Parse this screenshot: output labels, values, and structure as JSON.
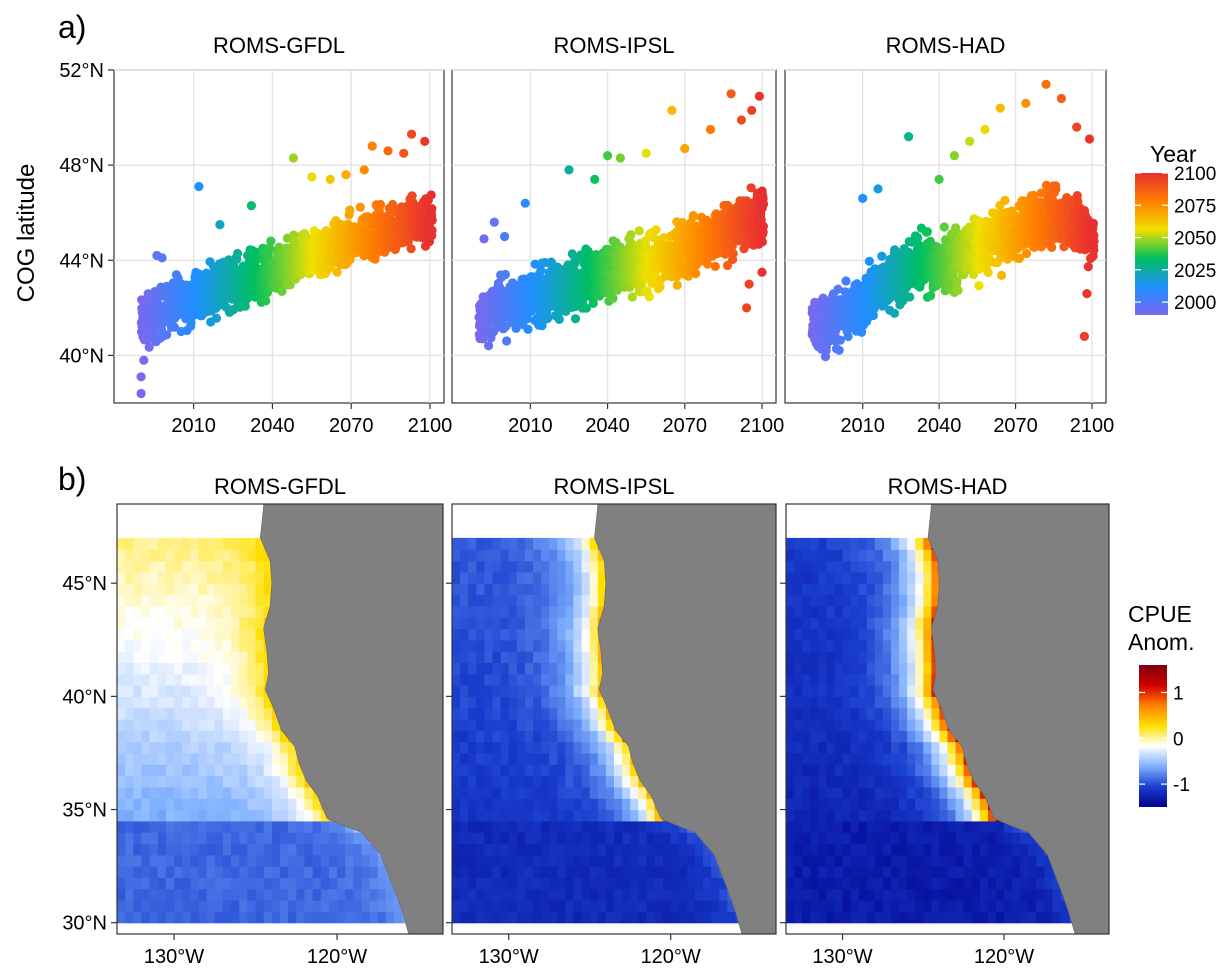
{
  "panels": {
    "a": "a)",
    "b": "b)"
  },
  "chart_data": [
    {
      "type": "scatter",
      "panel": "a",
      "facets": [
        "ROMS-GFDL",
        "ROMS-IPSL",
        "ROMS-HAD"
      ],
      "xlabel": "",
      "ylabel": "COG latitude",
      "xlim": [
        1985,
        2100
      ],
      "ylim": [
        38,
        52
      ],
      "x_ticks": [
        2010,
        2040,
        2070,
        2100
      ],
      "y_ticks": [
        40,
        44,
        48,
        52
      ],
      "y_tick_labels": [
        "40°N",
        "44°N",
        "48°N",
        "52°N"
      ],
      "grid": true,
      "legend": {
        "title": "Year",
        "position": "right",
        "ticks": [
          2000,
          2025,
          2050,
          2075,
          2100
        ],
        "range": [
          1990,
          2100
        ],
        "colors": [
          "#7b68ee",
          "#1e90ff",
          "#00c060",
          "#f0e000",
          "#ff8000",
          "#e83030"
        ]
      },
      "series": [
        {
          "facet": "ROMS-GFDL",
          "trend": [
            [
              1990,
              41.3
            ],
            [
              2000,
              42.0
            ],
            [
              2010,
              42.5
            ],
            [
              2020,
              42.9
            ],
            [
              2030,
              43.2
            ],
            [
              2040,
              43.5
            ],
            [
              2050,
              44.0
            ],
            [
              2060,
              44.4
            ],
            [
              2070,
              44.8
            ],
            [
              2080,
              45.2
            ],
            [
              2090,
              45.6
            ],
            [
              2100,
              45.6
            ]
          ],
          "spread": 0.9,
          "outliers": [
            [
              1990,
              38.4
            ],
            [
              1990,
              39.1
            ],
            [
              1991,
              39.8
            ],
            [
              1996,
              44.2
            ],
            [
              1998,
              44.1
            ],
            [
              2012,
              47.1
            ],
            [
              2020,
              45.5
            ],
            [
              2032,
              46.3
            ],
            [
              2048,
              48.3
            ],
            [
              2055,
              47.5
            ],
            [
              2062,
              47.4
            ],
            [
              2068,
              47.6
            ],
            [
              2075,
              47.8
            ],
            [
              2078,
              48.8
            ],
            [
              2084,
              48.6
            ],
            [
              2090,
              48.5
            ],
            [
              2093,
              49.3
            ],
            [
              2098,
              49.0
            ]
          ]
        },
        {
          "facet": "ROMS-IPSL",
          "trend": [
            [
              1990,
              41.6
            ],
            [
              2000,
              42.1
            ],
            [
              2010,
              42.4
            ],
            [
              2020,
              42.7
            ],
            [
              2030,
              43.2
            ],
            [
              2040,
              43.6
            ],
            [
              2050,
              43.7
            ],
            [
              2060,
              43.9
            ],
            [
              2070,
              44.5
            ],
            [
              2080,
              44.9
            ],
            [
              2090,
              45.5
            ],
            [
              2100,
              45.8
            ]
          ],
          "spread": 1.0,
          "outliers": [
            [
              1992,
              44.9
            ],
            [
              1996,
              45.6
            ],
            [
              2000,
              45.0
            ],
            [
              2008,
              46.4
            ],
            [
              2025,
              47.8
            ],
            [
              2035,
              47.4
            ],
            [
              2040,
              48.4
            ],
            [
              2045,
              48.3
            ],
            [
              2055,
              48.5
            ],
            [
              2065,
              50.3
            ],
            [
              2070,
              48.7
            ],
            [
              2080,
              49.5
            ],
            [
              2088,
              51.0
            ],
            [
              2092,
              49.9
            ],
            [
              2096,
              50.3
            ],
            [
              2099,
              50.9
            ],
            [
              2094,
              42.0
            ],
            [
              2095,
              43.0
            ],
            [
              2100,
              43.5
            ]
          ]
        },
        {
          "facet": "ROMS-HAD",
          "trend": [
            [
              1990,
              41.3
            ],
            [
              2000,
              41.4
            ],
            [
              2010,
              42.3
            ],
            [
              2020,
              43.1
            ],
            [
              2030,
              43.9
            ],
            [
              2040,
              43.8
            ],
            [
              2050,
              44.3
            ],
            [
              2060,
              44.8
            ],
            [
              2070,
              45.2
            ],
            [
              2080,
              45.7
            ],
            [
              2090,
              45.8
            ],
            [
              2100,
              45.0
            ]
          ],
          "spread": 1.0,
          "outliers": [
            [
              2010,
              46.6
            ],
            [
              2016,
              47.0
            ],
            [
              2028,
              49.2
            ],
            [
              2040,
              47.4
            ],
            [
              2046,
              48.4
            ],
            [
              2052,
              49.0
            ],
            [
              2058,
              49.5
            ],
            [
              2064,
              50.4
            ],
            [
              2074,
              50.6
            ],
            [
              2082,
              51.4
            ],
            [
              2088,
              50.8
            ],
            [
              2094,
              49.6
            ],
            [
              2099,
              49.1
            ],
            [
              2097,
              40.8
            ],
            [
              2098,
              42.6
            ]
          ]
        }
      ]
    },
    {
      "type": "heatmap",
      "panel": "b",
      "facets": [
        "ROMS-GFDL",
        "ROMS-IPSL",
        "ROMS-HAD"
      ],
      "x_ticks": [
        -130,
        -120
      ],
      "x_tick_labels": [
        "130°W",
        "120°W"
      ],
      "y_ticks": [
        30,
        35,
        40,
        45
      ],
      "y_tick_labels": [
        "30°N",
        "35°N",
        "40°N",
        "45°N"
      ],
      "xlim": [
        -133.5,
        -113.5
      ],
      "ylim": [
        29.5,
        48.5
      ],
      "data_extent": {
        "lon": [
          -133.5,
          -115.5
        ],
        "lat": [
          30,
          47
        ]
      },
      "land_color": "#808080",
      "coastline": [
        [
          -124.5,
          48.4
        ],
        [
          -124.7,
          47.0
        ],
        [
          -124.1,
          46.0
        ],
        [
          -124.0,
          45.0
        ],
        [
          -124.1,
          44.0
        ],
        [
          -124.5,
          43.0
        ],
        [
          -124.3,
          42.0
        ],
        [
          -124.2,
          41.0
        ],
        [
          -124.4,
          40.3
        ],
        [
          -123.9,
          39.5
        ],
        [
          -123.4,
          38.5
        ],
        [
          -122.6,
          37.8
        ],
        [
          -122.3,
          37.0
        ],
        [
          -121.9,
          36.3
        ],
        [
          -121.2,
          35.6
        ],
        [
          -120.6,
          34.6
        ],
        [
          -119.6,
          34.3
        ],
        [
          -118.5,
          34.0
        ],
        [
          -117.3,
          33.0
        ],
        [
          -117.1,
          32.6
        ],
        [
          -116.5,
          31.5
        ],
        [
          -116.0,
          30.5
        ],
        [
          -115.6,
          29.5
        ]
      ],
      "legend": {
        "title": [
          "CPUE",
          "Anom."
        ],
        "position": "right",
        "ticks": [
          1,
          0,
          -1
        ],
        "range": [
          -1.5,
          1.6
        ],
        "colors": [
          "#00008b",
          "#1a3fcf",
          "#7fb0ff",
          "#ffffff",
          "#ffe000",
          "#ff8000",
          "#d00000",
          "#7a0010"
        ]
      },
      "facet_anomaly": {
        "ROMS-GFDL": {
          "coast": 0.3,
          "north_offshore": 0.05,
          "south_offshore": -0.9
        },
        "ROMS-IPSL": {
          "coast": 0.4,
          "north_offshore": -0.95,
          "south_offshore": -1.2
        },
        "ROMS-HAD": {
          "coast": 0.9,
          "north_offshore": -1.1,
          "south_offshore": -1.3
        }
      }
    }
  ]
}
